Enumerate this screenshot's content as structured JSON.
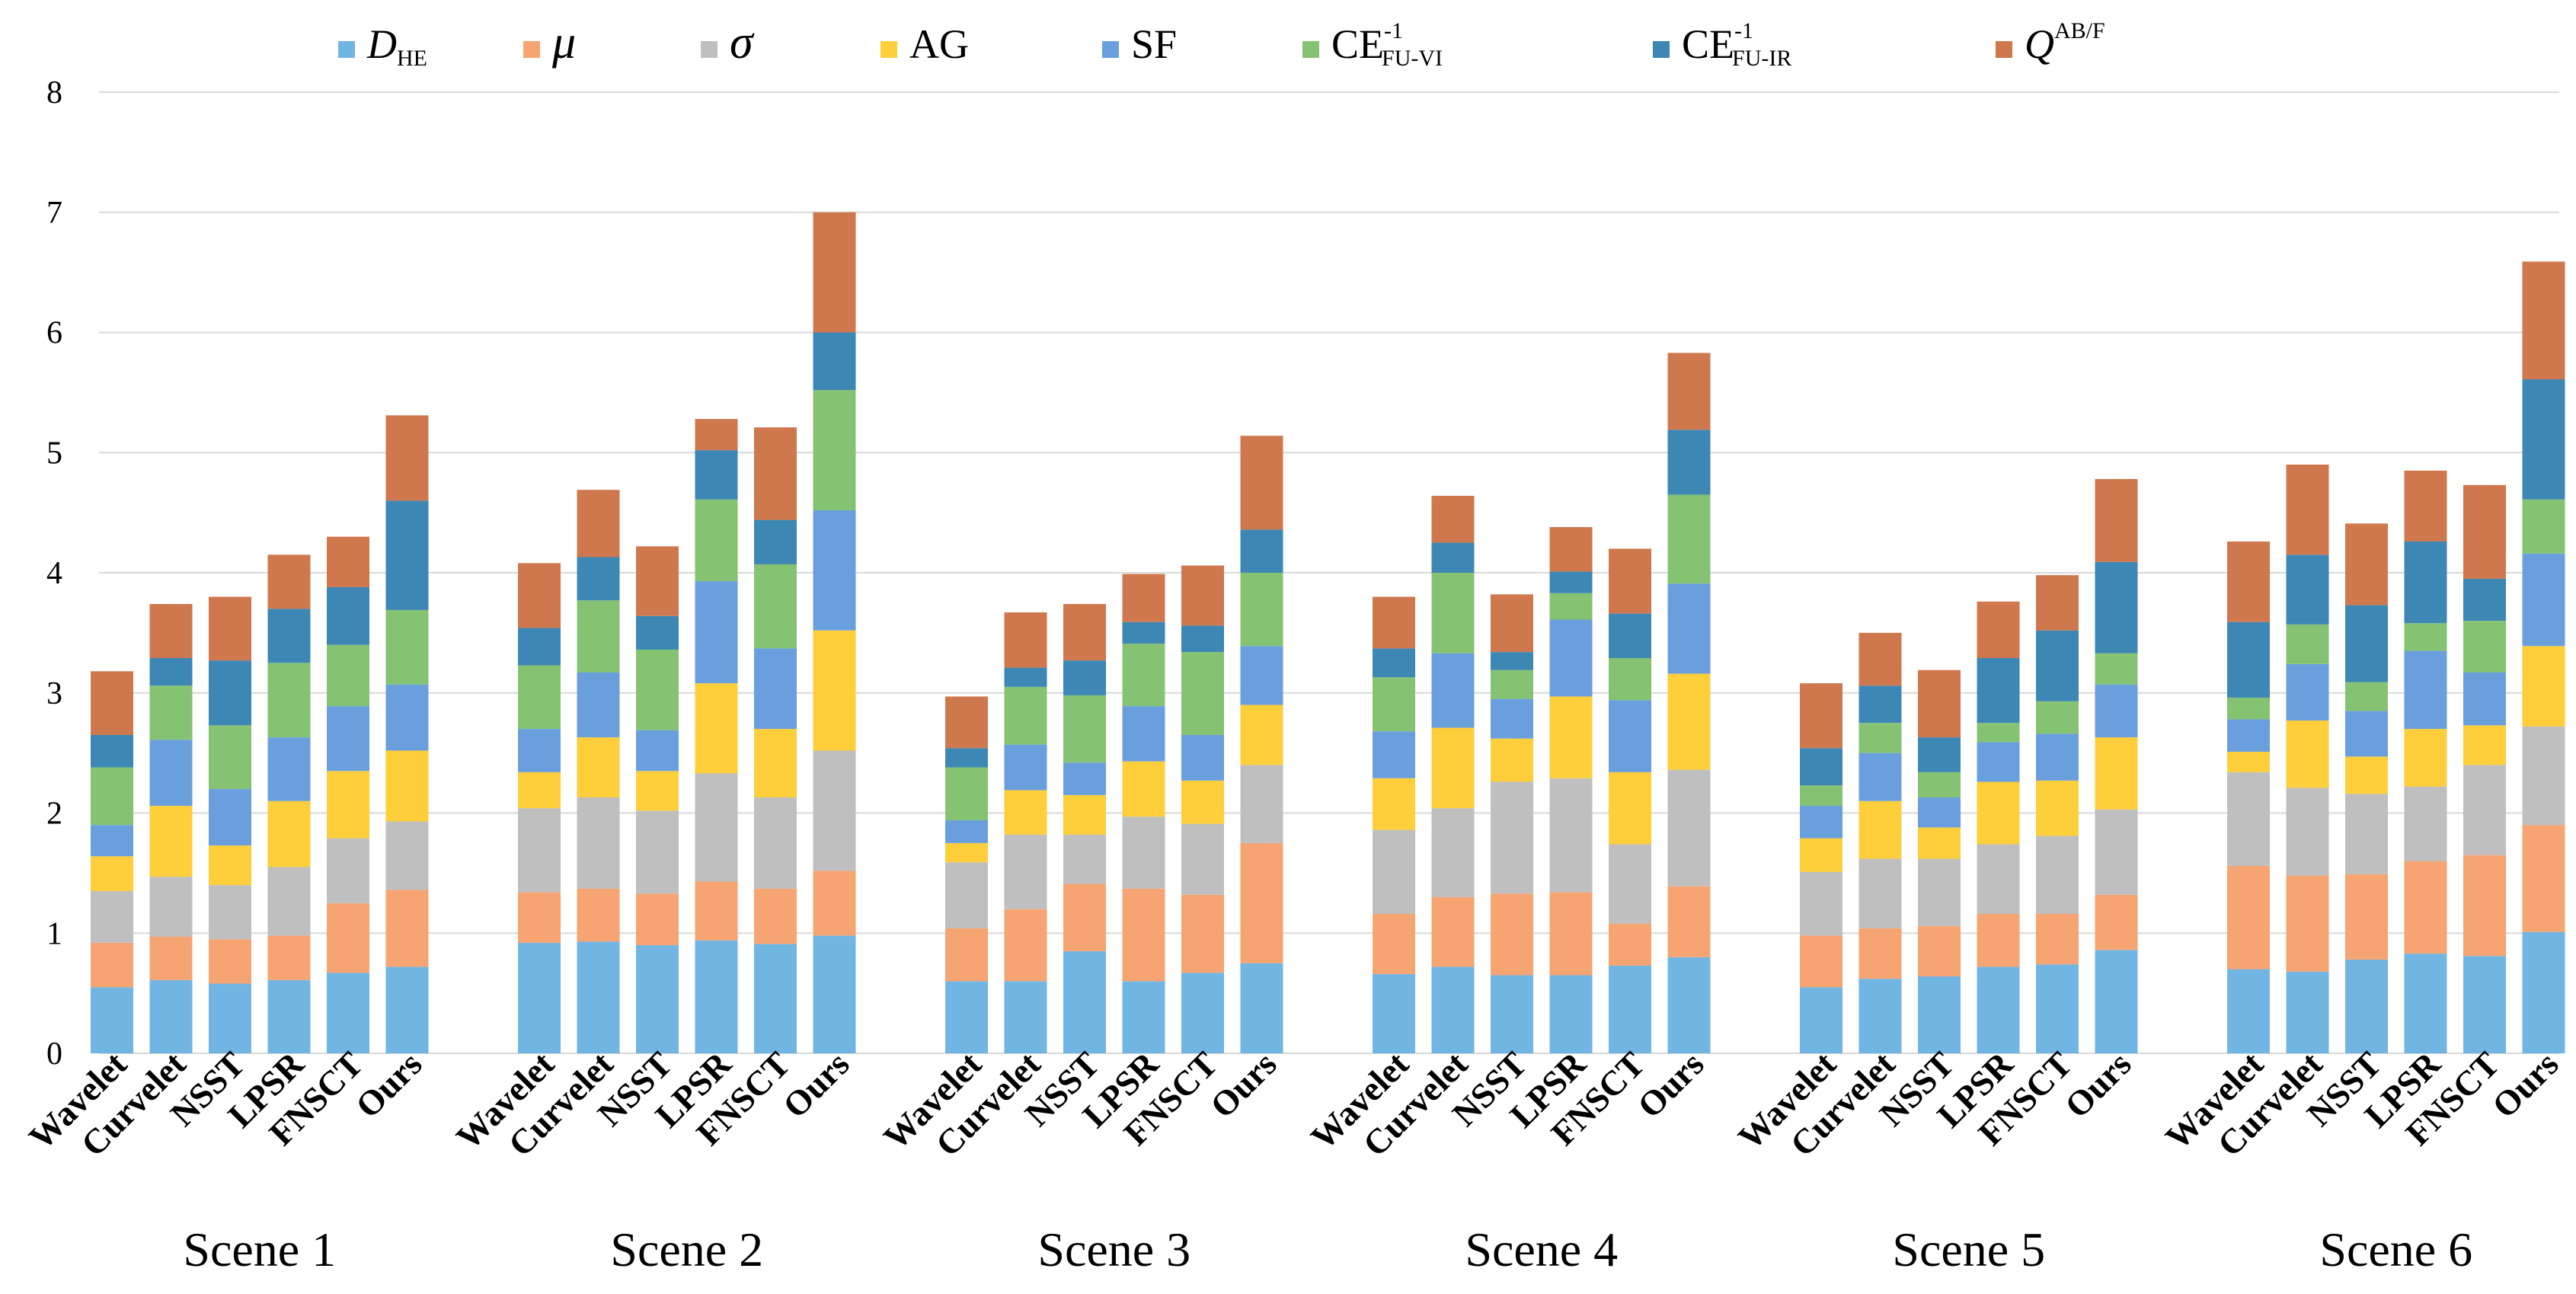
{
  "chart_data": {
    "type": "bar",
    "stacked": true,
    "title": "",
    "xlabel": "",
    "ylabel": "",
    "ylim": [
      0,
      8
    ],
    "yticks": [
      0,
      1,
      2,
      3,
      4,
      5,
      6,
      7,
      8
    ],
    "grid": true,
    "legend_position": "top",
    "methods": [
      "Wavelet",
      "Curvelet",
      "NSST",
      "LPSR",
      "FNSCT",
      "Ours"
    ],
    "groups": [
      {
        "name": "Scene 1",
        "values": [
          [
            0.55,
            0.37,
            0.43,
            0.29,
            0.26,
            0.48,
            0.27,
            0.53
          ],
          [
            0.61,
            0.36,
            0.5,
            0.59,
            0.55,
            0.45,
            0.23,
            0.45
          ],
          [
            0.58,
            0.37,
            0.45,
            0.33,
            0.47,
            0.53,
            0.54,
            0.53
          ],
          [
            0.61,
            0.37,
            0.57,
            0.55,
            0.53,
            0.62,
            0.45,
            0.45
          ],
          [
            0.67,
            0.58,
            0.54,
            0.56,
            0.54,
            0.51,
            0.48,
            0.42
          ],
          [
            0.72,
            0.64,
            0.57,
            0.59,
            0.55,
            0.62,
            0.91,
            0.71
          ]
        ]
      },
      {
        "name": "Scene 2",
        "values": [
          [
            0.92,
            0.42,
            0.7,
            0.3,
            0.36,
            0.53,
            0.31,
            0.54
          ],
          [
            0.93,
            0.44,
            0.76,
            0.5,
            0.54,
            0.6,
            0.36,
            0.56
          ],
          [
            0.9,
            0.43,
            0.69,
            0.33,
            0.34,
            0.67,
            0.28,
            0.58
          ],
          [
            0.94,
            0.49,
            0.9,
            0.75,
            0.85,
            0.68,
            0.41,
            0.26
          ],
          [
            0.91,
            0.46,
            0.76,
            0.57,
            0.67,
            0.7,
            0.37,
            0.77
          ],
          [
            0.98,
            0.54,
            1.0,
            1.0,
            1.0,
            1.0,
            0.48,
            1.0
          ]
        ]
      },
      {
        "name": "Scene 3",
        "values": [
          [
            0.6,
            0.44,
            0.55,
            0.16,
            0.19,
            0.44,
            0.16,
            0.43
          ],
          [
            0.6,
            0.6,
            0.62,
            0.37,
            0.38,
            0.48,
            0.16,
            0.46
          ],
          [
            0.85,
            0.56,
            0.41,
            0.33,
            0.27,
            0.56,
            0.29,
            0.47
          ],
          [
            0.6,
            0.77,
            0.6,
            0.46,
            0.46,
            0.52,
            0.18,
            0.4
          ],
          [
            0.67,
            0.65,
            0.59,
            0.36,
            0.38,
            0.69,
            0.22,
            0.5
          ],
          [
            0.75,
            1.0,
            0.65,
            0.5,
            0.49,
            0.61,
            0.36,
            0.78
          ]
        ]
      },
      {
        "name": "Scene 4",
        "values": [
          [
            0.66,
            0.5,
            0.7,
            0.43,
            0.39,
            0.45,
            0.24,
            0.43
          ],
          [
            0.72,
            0.58,
            0.74,
            0.67,
            0.62,
            0.67,
            0.25,
            0.39
          ],
          [
            0.65,
            0.68,
            0.93,
            0.36,
            0.33,
            0.24,
            0.15,
            0.48
          ],
          [
            0.65,
            0.69,
            0.95,
            0.68,
            0.64,
            0.22,
            0.18,
            0.37
          ],
          [
            0.73,
            0.35,
            0.66,
            0.6,
            0.6,
            0.35,
            0.37,
            0.54
          ],
          [
            0.8,
            0.59,
            0.97,
            0.8,
            0.75,
            0.74,
            0.54,
            0.64
          ]
        ]
      },
      {
        "name": "Scene 5",
        "values": [
          [
            0.55,
            0.43,
            0.53,
            0.28,
            0.27,
            0.17,
            0.31,
            0.54
          ],
          [
            0.62,
            0.42,
            0.58,
            0.48,
            0.4,
            0.25,
            0.31,
            0.44
          ],
          [
            0.64,
            0.42,
            0.56,
            0.26,
            0.25,
            0.21,
            0.29,
            0.56
          ],
          [
            0.72,
            0.44,
            0.58,
            0.52,
            0.33,
            0.16,
            0.54,
            0.47
          ],
          [
            0.74,
            0.42,
            0.65,
            0.46,
            0.39,
            0.27,
            0.59,
            0.46
          ],
          [
            0.86,
            0.46,
            0.71,
            0.6,
            0.44,
            0.26,
            0.76,
            0.69
          ]
        ]
      },
      {
        "name": "Scene 6",
        "values": [
          [
            0.7,
            0.86,
            0.78,
            0.17,
            0.27,
            0.18,
            0.63,
            0.67
          ],
          [
            0.68,
            0.8,
            0.73,
            0.56,
            0.47,
            0.33,
            0.58,
            0.75
          ],
          [
            0.78,
            0.71,
            0.67,
            0.31,
            0.38,
            0.24,
            0.64,
            0.68
          ],
          [
            0.83,
            0.77,
            0.62,
            0.48,
            0.65,
            0.23,
            0.68,
            0.59
          ],
          [
            0.81,
            0.84,
            0.75,
            0.33,
            0.44,
            0.43,
            0.35,
            0.78
          ],
          [
            1.01,
            0.89,
            0.82,
            0.67,
            0.77,
            0.45,
            1.0,
            0.98
          ]
        ]
      }
    ],
    "series": [
      {
        "name": "D_HE",
        "label": "D",
        "sub": "HE",
        "sup": "",
        "italic": true,
        "color": "#71b5e3"
      },
      {
        "name": "μ",
        "label": "μ",
        "sub": "",
        "sup": "",
        "italic": true,
        "color": "#f6a472"
      },
      {
        "name": "σ",
        "label": "σ",
        "sub": "",
        "sup": "",
        "italic": true,
        "color": "#bfbfbf"
      },
      {
        "name": "AG",
        "label": "AG",
        "sub": "",
        "sup": "",
        "italic": false,
        "color": "#fece3b"
      },
      {
        "name": "SF",
        "label": "SF",
        "sub": "",
        "sup": "",
        "italic": false,
        "color": "#6a9fde"
      },
      {
        "name": "CE-1 FU-VI",
        "label": "CE",
        "sub": "FU-VI",
        "sup": "-1",
        "italic": false,
        "color": "#85c373"
      },
      {
        "name": "CE-1 FU-IR",
        "label": "CE",
        "sub": "FU-IR",
        "sup": "-1",
        "italic": false,
        "color": "#3d87b4"
      },
      {
        "name": "Q AB/F",
        "label": "Q",
        "sub": "",
        "sup": "AB/F",
        "italic": true,
        "color": "#d0784d"
      }
    ]
  }
}
